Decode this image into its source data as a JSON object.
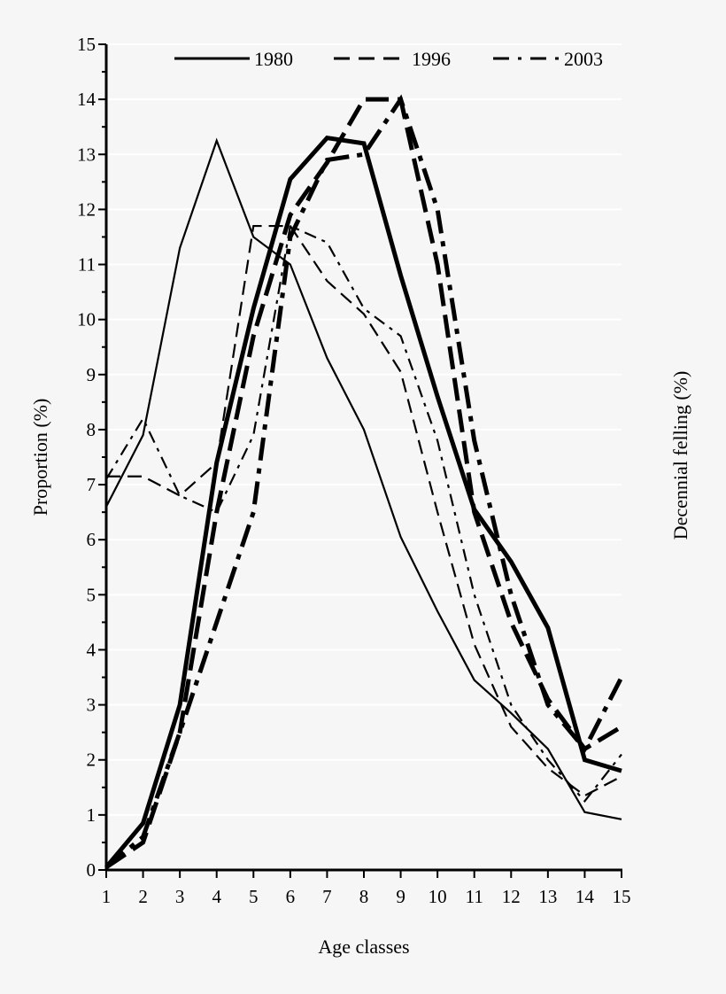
{
  "chart_data": {
    "type": "line",
    "title": "",
    "xlabel": "Age classes",
    "ylabel": "Proportion (%)",
    "y2label": "Decennial felling (%)",
    "x": [
      1,
      2,
      3,
      4,
      5,
      6,
      7,
      8,
      9,
      10,
      11,
      12,
      13,
      14,
      15
    ],
    "xlim": [
      1,
      15
    ],
    "ylim": [
      0,
      15
    ],
    "yticks": [
      0,
      1,
      2,
      3,
      4,
      5,
      6,
      7,
      8,
      9,
      10,
      11,
      12,
      13,
      14,
      15
    ],
    "grid": true,
    "legend_placement": "top",
    "legend": [
      {
        "label": "1980",
        "style": "solid"
      },
      {
        "label": "1996",
        "style": "dashed"
      },
      {
        "label": "2003",
        "style": "dash-dot"
      }
    ],
    "series": [
      {
        "name": "1980",
        "axis": "Proportion (%)",
        "style": "solid",
        "weight": "thin",
        "values": [
          6.6,
          7.9,
          11.3,
          13.25,
          11.5,
          11.0,
          9.3,
          8.0,
          6.05,
          4.7,
          3.45,
          2.85,
          2.2,
          1.05,
          0.92
        ]
      },
      {
        "name": "1996",
        "axis": "Proportion (%)",
        "style": "dashed",
        "weight": "thin",
        "values": [
          7.15,
          7.15,
          6.8,
          7.4,
          11.7,
          11.7,
          10.7,
          10.1,
          9.05,
          6.5,
          4.1,
          2.6,
          1.85,
          1.35,
          1.7
        ]
      },
      {
        "name": "2003",
        "axis": "Proportion (%)",
        "style": "dash-dot",
        "weight": "thin",
        "values": [
          7.1,
          8.2,
          6.8,
          6.5,
          7.9,
          11.7,
          11.4,
          10.2,
          9.7,
          7.8,
          5.0,
          3.0,
          2.0,
          1.25,
          2.1
        ]
      },
      {
        "name": "1980",
        "axis": "Decennial felling (%)",
        "style": "solid",
        "weight": "thick",
        "values": [
          0.05,
          0.85,
          3.0,
          7.4,
          10.2,
          12.55,
          13.3,
          13.2,
          10.8,
          8.6,
          6.55,
          5.6,
          4.4,
          2.0,
          1.8
        ]
      },
      {
        "name": "1996",
        "axis": "Decennial felling (%)",
        "style": "dashed",
        "weight": "thick",
        "values": [
          0.05,
          0.5,
          2.5,
          6.5,
          9.7,
          11.9,
          12.85,
          14.0,
          14.0,
          11.0,
          6.5,
          4.5,
          3.1,
          2.2,
          2.6
        ]
      },
      {
        "name": "2003",
        "axis": "Decennial felling (%)",
        "style": "dash-dot",
        "weight": "thick",
        "values": [
          0.05,
          0.6,
          2.5,
          4.5,
          6.5,
          11.5,
          12.9,
          13.0,
          14.0,
          12.0,
          7.8,
          5.0,
          3.0,
          2.2,
          3.5
        ]
      }
    ],
    "colors": {
      "background": "#f6f6f6",
      "grid": "#ffffff",
      "line": "#000000"
    }
  }
}
